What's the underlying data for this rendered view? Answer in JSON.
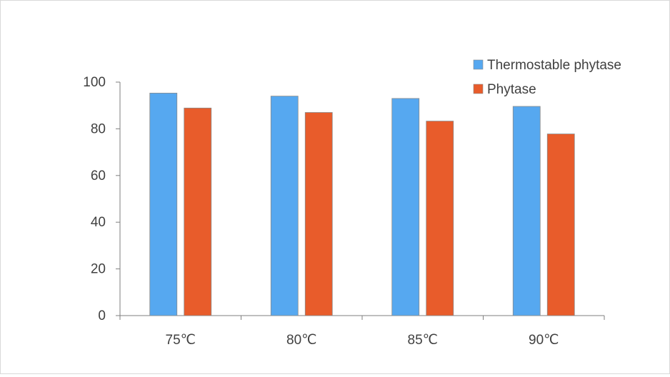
{
  "chart_data": {
    "type": "bar",
    "categories": [
      "75℃",
      "80℃",
      "85℃",
      "90℃"
    ],
    "series": [
      {
        "name": "Thermostable phytase",
        "values": [
          95.3,
          94.0,
          93.0,
          89.6
        ]
      },
      {
        "name": "Phytase",
        "values": [
          88.9,
          87.0,
          83.3,
          77.8
        ]
      }
    ],
    "title": "",
    "xlabel": "",
    "ylabel": "",
    "ylim": [
      0,
      100
    ],
    "yticks": [
      0,
      20,
      40,
      60,
      80,
      100
    ],
    "grid": false,
    "legend_position": "top-right",
    "colors": [
      "#56A8F0",
      "#E85C2B"
    ],
    "bar_border": "#8a8a8a"
  }
}
